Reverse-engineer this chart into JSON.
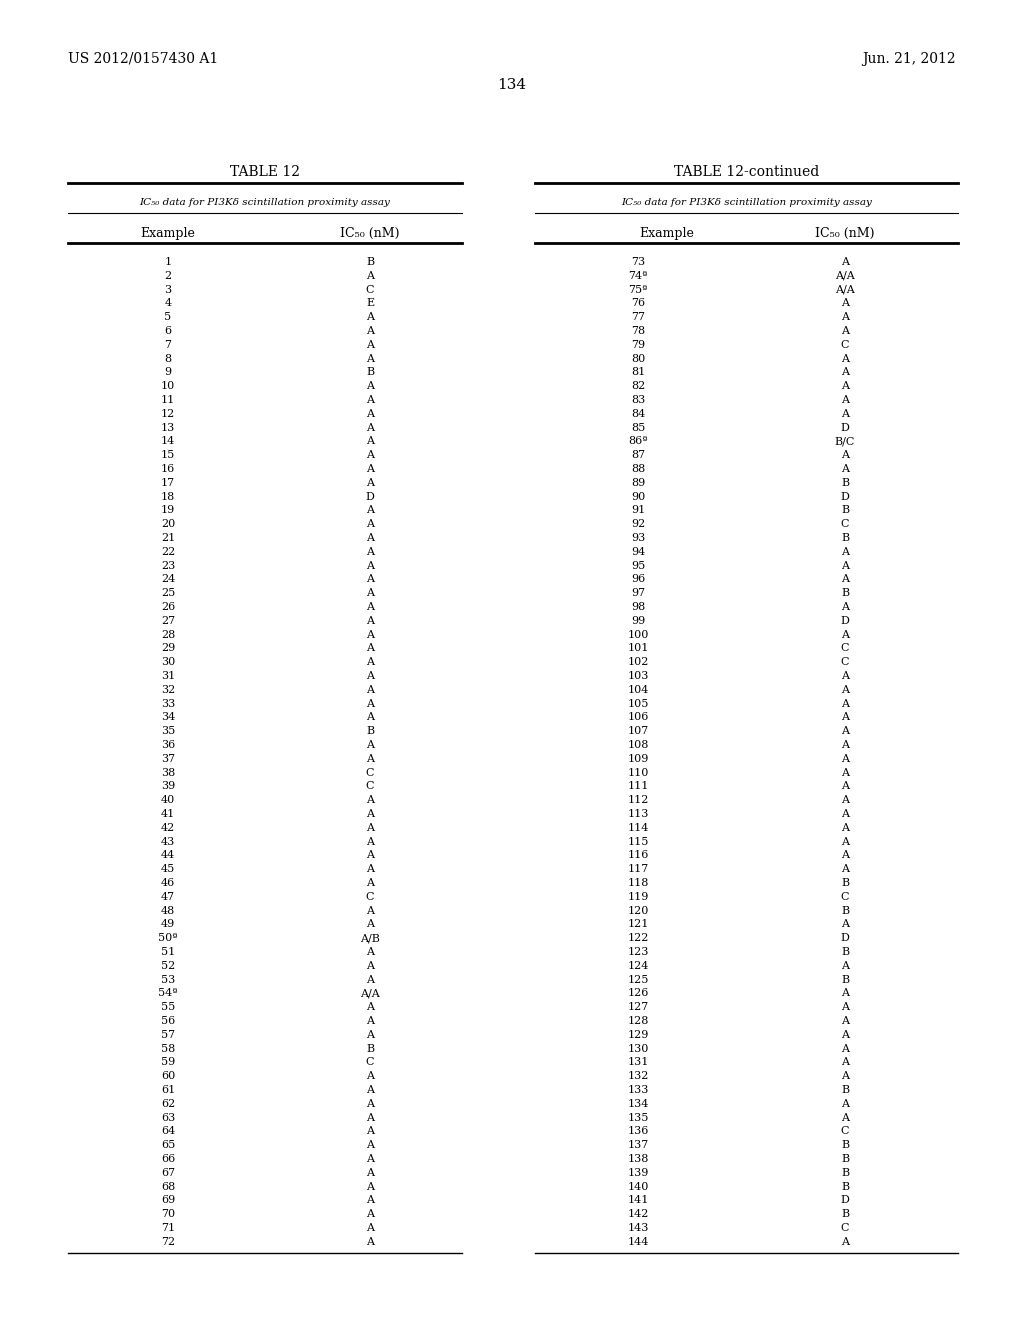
{
  "header_left": "US 2012/0157430 A1",
  "header_right": "Jun. 21, 2012",
  "page_number": "134",
  "table_title_left": "TABLE 12",
  "table_title_right": "TABLE 12-continued",
  "subtitle_text": "IC",
  "subtitle_sub": "50",
  "subtitle_rest": " data for PI3Kδ scintillation proximity assay",
  "col1_header": "Example",
  "col2_header_main": "IC",
  "col2_header_sub": "50",
  "col2_header_rest": " (nM)",
  "left_data": [
    [
      "1",
      "B"
    ],
    [
      "2",
      "A"
    ],
    [
      "3",
      "C"
    ],
    [
      "4",
      "E"
    ],
    [
      "5",
      "A"
    ],
    [
      "6",
      "A"
    ],
    [
      "7",
      "A"
    ],
    [
      "8",
      "A"
    ],
    [
      "9",
      "B"
    ],
    [
      "10",
      "A"
    ],
    [
      "11",
      "A"
    ],
    [
      "12",
      "A"
    ],
    [
      "13",
      "A"
    ],
    [
      "14",
      "A"
    ],
    [
      "15",
      "A"
    ],
    [
      "16",
      "A"
    ],
    [
      "17",
      "A"
    ],
    [
      "18",
      "D"
    ],
    [
      "19",
      "A"
    ],
    [
      "20",
      "A"
    ],
    [
      "21",
      "A"
    ],
    [
      "22",
      "A"
    ],
    [
      "23",
      "A"
    ],
    [
      "24",
      "A"
    ],
    [
      "25",
      "A"
    ],
    [
      "26",
      "A"
    ],
    [
      "27",
      "A"
    ],
    [
      "28",
      "A"
    ],
    [
      "29",
      "A"
    ],
    [
      "30",
      "A"
    ],
    [
      "31",
      "A"
    ],
    [
      "32",
      "A"
    ],
    [
      "33",
      "A"
    ],
    [
      "34",
      "A"
    ],
    [
      "35",
      "B"
    ],
    [
      "36",
      "A"
    ],
    [
      "37",
      "A"
    ],
    [
      "38",
      "C"
    ],
    [
      "39",
      "C"
    ],
    [
      "40",
      "A"
    ],
    [
      "41",
      "A"
    ],
    [
      "42",
      "A"
    ],
    [
      "43",
      "A"
    ],
    [
      "44",
      "A"
    ],
    [
      "45",
      "A"
    ],
    [
      "46",
      "A"
    ],
    [
      "47",
      "C"
    ],
    [
      "48",
      "A"
    ],
    [
      "49",
      "A"
    ],
    [
      "50ª",
      "A/B"
    ],
    [
      "51",
      "A"
    ],
    [
      "52",
      "A"
    ],
    [
      "53",
      "A"
    ],
    [
      "54ª",
      "A/A"
    ],
    [
      "55",
      "A"
    ],
    [
      "56",
      "A"
    ],
    [
      "57",
      "A"
    ],
    [
      "58",
      "B"
    ],
    [
      "59",
      "C"
    ],
    [
      "60",
      "A"
    ],
    [
      "61",
      "A"
    ],
    [
      "62",
      "A"
    ],
    [
      "63",
      "A"
    ],
    [
      "64",
      "A"
    ],
    [
      "65",
      "A"
    ],
    [
      "66",
      "A"
    ],
    [
      "67",
      "A"
    ],
    [
      "68",
      "A"
    ],
    [
      "69",
      "A"
    ],
    [
      "70",
      "A"
    ],
    [
      "71",
      "A"
    ],
    [
      "72",
      "A"
    ]
  ],
  "right_data": [
    [
      "73",
      "A"
    ],
    [
      "74ª",
      "A/A"
    ],
    [
      "75ª",
      "A/A"
    ],
    [
      "76",
      "A"
    ],
    [
      "77",
      "A"
    ],
    [
      "78",
      "A"
    ],
    [
      "79",
      "C"
    ],
    [
      "80",
      "A"
    ],
    [
      "81",
      "A"
    ],
    [
      "82",
      "A"
    ],
    [
      "83",
      "A"
    ],
    [
      "84",
      "A"
    ],
    [
      "85",
      "D"
    ],
    [
      "86ª",
      "B/C"
    ],
    [
      "87",
      "A"
    ],
    [
      "88",
      "A"
    ],
    [
      "89",
      "B"
    ],
    [
      "90",
      "D"
    ],
    [
      "91",
      "B"
    ],
    [
      "92",
      "C"
    ],
    [
      "93",
      "B"
    ],
    [
      "94",
      "A"
    ],
    [
      "95",
      "A"
    ],
    [
      "96",
      "A"
    ],
    [
      "97",
      "B"
    ],
    [
      "98",
      "A"
    ],
    [
      "99",
      "D"
    ],
    [
      "100",
      "A"
    ],
    [
      "101",
      "C"
    ],
    [
      "102",
      "C"
    ],
    [
      "103",
      "A"
    ],
    [
      "104",
      "A"
    ],
    [
      "105",
      "A"
    ],
    [
      "106",
      "A"
    ],
    [
      "107",
      "A"
    ],
    [
      "108",
      "A"
    ],
    [
      "109",
      "A"
    ],
    [
      "110",
      "A"
    ],
    [
      "111",
      "A"
    ],
    [
      "112",
      "A"
    ],
    [
      "113",
      "A"
    ],
    [
      "114",
      "A"
    ],
    [
      "115",
      "A"
    ],
    [
      "116",
      "A"
    ],
    [
      "117",
      "A"
    ],
    [
      "118",
      "B"
    ],
    [
      "119",
      "C"
    ],
    [
      "120",
      "B"
    ],
    [
      "121",
      "A"
    ],
    [
      "122",
      "D"
    ],
    [
      "123",
      "B"
    ],
    [
      "124",
      "A"
    ],
    [
      "125",
      "B"
    ],
    [
      "126",
      "A"
    ],
    [
      "127",
      "A"
    ],
    [
      "128",
      "A"
    ],
    [
      "129",
      "A"
    ],
    [
      "130",
      "A"
    ],
    [
      "131",
      "A"
    ],
    [
      "132",
      "A"
    ],
    [
      "133",
      "B"
    ],
    [
      "134",
      "A"
    ],
    [
      "135",
      "A"
    ],
    [
      "136",
      "C"
    ],
    [
      "137",
      "B"
    ],
    [
      "138",
      "B"
    ],
    [
      "139",
      "B"
    ],
    [
      "140",
      "B"
    ],
    [
      "141",
      "D"
    ],
    [
      "142",
      "B"
    ],
    [
      "143",
      "C"
    ],
    [
      "144",
      "A"
    ]
  ],
  "background_color": "#ffffff",
  "text_color": "#000000"
}
